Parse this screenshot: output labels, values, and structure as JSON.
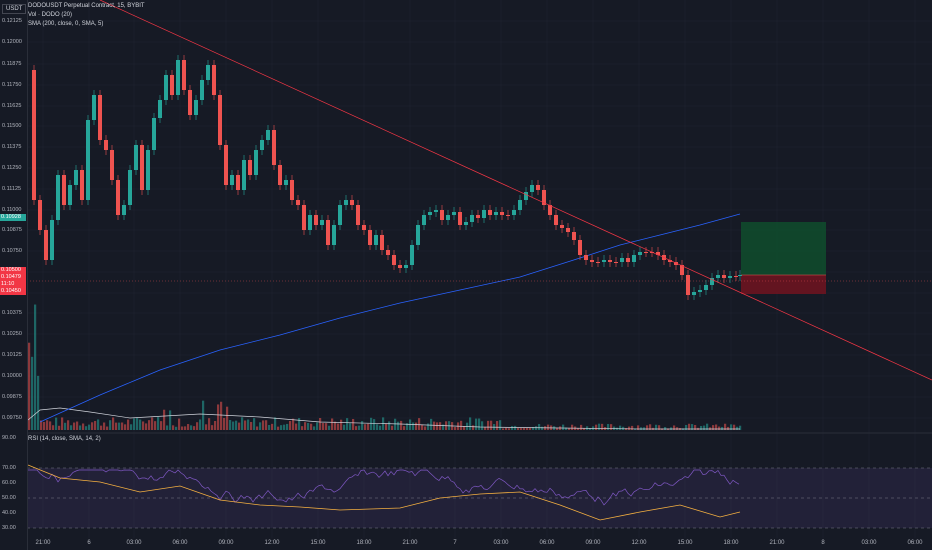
{
  "header": {
    "quote_label": "USDT",
    "symbol_line": "DODOUSDT Perpetual Contract, 15, BYBIT",
    "vol_line": "Vol · DODO (20)",
    "sma_line": "SMA (200, close, 0, SMA, 5)"
  },
  "price_axis": {
    "ticks": [
      "0.12125",
      "0.12000",
      "0.11875",
      "0.11750",
      "0.11625",
      "0.11500",
      "0.11375",
      "0.11250",
      "0.11125",
      "0.11000",
      "0.10875",
      "0.10750",
      "0.10625",
      "0.10500",
      "0.10375",
      "0.10250",
      "0.10125",
      "0.10000",
      "0.09875",
      "0.09750"
    ],
    "badges": [
      {
        "text": "0.10928",
        "color": "#26a69a"
      },
      {
        "text": "0.10500",
        "color": "#f23645"
      },
      {
        "text": "0.10479",
        "color": "#f23645"
      },
      {
        "text": "11:10",
        "color": "#f23645"
      },
      {
        "text": "0.10450",
        "color": "#f23645"
      }
    ]
  },
  "rsi": {
    "legend": "RSI (14, close, SMA, 14, 2)",
    "ticks": [
      "90.00",
      "70.00",
      "60.00",
      "50.00",
      "40.00",
      "30.00"
    ]
  },
  "time_axis": {
    "labels": [
      "21:00",
      "6",
      "03:00",
      "06:00",
      "09:00",
      "12:00",
      "15:00",
      "18:00",
      "21:00",
      "7",
      "03:00",
      "06:00",
      "09:00",
      "12:00",
      "15:00",
      "18:00",
      "21:00",
      "8",
      "03:00",
      "06:00"
    ]
  },
  "colors": {
    "background": "#161a25",
    "up": "#26a69a",
    "down": "#ef5350",
    "trendline": "#f23645",
    "sma": "#2962ff",
    "rsi_line": "#7e57c2",
    "rsi_sma": "#f5b041",
    "profit_zone": "#0f4a2c",
    "loss_zone": "#6b1420"
  }
}
